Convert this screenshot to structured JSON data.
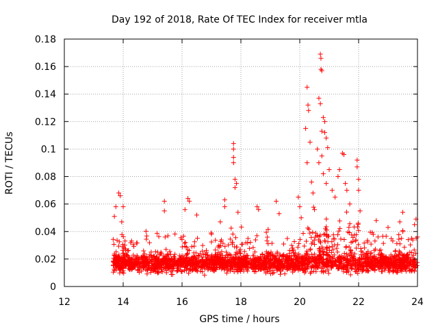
{
  "chart_data": {
    "type": "scatter",
    "title": "Day 192 of 2018, Rate Of TEC Index for receiver mtla",
    "xlabel": "GPS time / hours",
    "ylabel": "ROTI / TECUs",
    "xlim": [
      12,
      24
    ],
    "ylim": [
      0,
      0.18
    ],
    "xticks": [
      "12",
      "14",
      "16",
      "18",
      "20",
      "22",
      "24"
    ],
    "yticks": [
      "0",
      "0.02",
      "0.04",
      "0.06",
      "0.08",
      "0.1",
      "0.12",
      "0.14",
      "0.16",
      "0.18"
    ],
    "grid": true,
    "marker": "+",
    "series_color": "#ff0000",
    "series": [
      {
        "name": "ROTI",
        "notable_points": [
          {
            "x": 13.85,
            "y": 0.068
          },
          {
            "x": 13.9,
            "y": 0.066
          },
          {
            "x": 13.75,
            "y": 0.058
          },
          {
            "x": 14.0,
            "y": 0.058
          },
          {
            "x": 13.7,
            "y": 0.051
          },
          {
            "x": 13.95,
            "y": 0.047
          },
          {
            "x": 15.4,
            "y": 0.062
          },
          {
            "x": 15.4,
            "y": 0.055
          },
          {
            "x": 16.2,
            "y": 0.064
          },
          {
            "x": 16.25,
            "y": 0.062
          },
          {
            "x": 16.1,
            "y": 0.056
          },
          {
            "x": 16.5,
            "y": 0.052
          },
          {
            "x": 17.3,
            "y": 0.047
          },
          {
            "x": 17.45,
            "y": 0.058
          },
          {
            "x": 17.45,
            "y": 0.063
          },
          {
            "x": 17.75,
            "y": 0.104
          },
          {
            "x": 17.75,
            "y": 0.1
          },
          {
            "x": 17.75,
            "y": 0.094
          },
          {
            "x": 17.75,
            "y": 0.09
          },
          {
            "x": 17.8,
            "y": 0.078
          },
          {
            "x": 17.85,
            "y": 0.075
          },
          {
            "x": 17.8,
            "y": 0.072
          },
          {
            "x": 17.9,
            "y": 0.054
          },
          {
            "x": 18.55,
            "y": 0.058
          },
          {
            "x": 18.6,
            "y": 0.056
          },
          {
            "x": 19.2,
            "y": 0.062
          },
          {
            "x": 19.3,
            "y": 0.053
          },
          {
            "x": 19.95,
            "y": 0.065
          },
          {
            "x": 20.0,
            "y": 0.058
          },
          {
            "x": 20.05,
            "y": 0.05
          },
          {
            "x": 20.2,
            "y": 0.115
          },
          {
            "x": 20.25,
            "y": 0.145
          },
          {
            "x": 20.28,
            "y": 0.132
          },
          {
            "x": 20.3,
            "y": 0.128
          },
          {
            "x": 20.25,
            "y": 0.09
          },
          {
            "x": 20.35,
            "y": 0.105
          },
          {
            "x": 20.4,
            "y": 0.076
          },
          {
            "x": 20.45,
            "y": 0.068
          },
          {
            "x": 20.5,
            "y": 0.056
          },
          {
            "x": 20.65,
            "y": 0.137
          },
          {
            "x": 20.7,
            "y": 0.133
          },
          {
            "x": 20.7,
            "y": 0.169
          },
          {
            "x": 20.72,
            "y": 0.166
          },
          {
            "x": 20.72,
            "y": 0.158
          },
          {
            "x": 20.75,
            "y": 0.157
          },
          {
            "x": 20.8,
            "y": 0.123
          },
          {
            "x": 20.85,
            "y": 0.12
          },
          {
            "x": 20.75,
            "y": 0.113
          },
          {
            "x": 20.85,
            "y": 0.112
          },
          {
            "x": 20.9,
            "y": 0.108
          },
          {
            "x": 20.6,
            "y": 0.1
          },
          {
            "x": 20.65,
            "y": 0.09
          },
          {
            "x": 20.75,
            "y": 0.095
          },
          {
            "x": 20.8,
            "y": 0.082
          },
          {
            "x": 20.9,
            "y": 0.075
          },
          {
            "x": 20.95,
            "y": 0.101
          },
          {
            "x": 21.0,
            "y": 0.085
          },
          {
            "x": 21.1,
            "y": 0.07
          },
          {
            "x": 21.2,
            "y": 0.065
          },
          {
            "x": 21.3,
            "y": 0.08
          },
          {
            "x": 21.35,
            "y": 0.085
          },
          {
            "x": 21.45,
            "y": 0.097
          },
          {
            "x": 21.5,
            "y": 0.096
          },
          {
            "x": 21.55,
            "y": 0.075
          },
          {
            "x": 21.6,
            "y": 0.07
          },
          {
            "x": 21.7,
            "y": 0.06
          },
          {
            "x": 21.95,
            "y": 0.092
          },
          {
            "x": 21.95,
            "y": 0.087
          },
          {
            "x": 22.0,
            "y": 0.078
          },
          {
            "x": 22.0,
            "y": 0.07
          },
          {
            "x": 22.05,
            "y": 0.055
          },
          {
            "x": 22.6,
            "y": 0.048
          },
          {
            "x": 23.0,
            "y": 0.043
          },
          {
            "x": 23.5,
            "y": 0.054
          },
          {
            "x": 23.4,
            "y": 0.047
          },
          {
            "x": 23.95,
            "y": 0.049
          },
          {
            "x": 23.9,
            "y": 0.045
          },
          {
            "x": 24.0,
            "y": 0.036
          }
        ]
      }
    ]
  }
}
